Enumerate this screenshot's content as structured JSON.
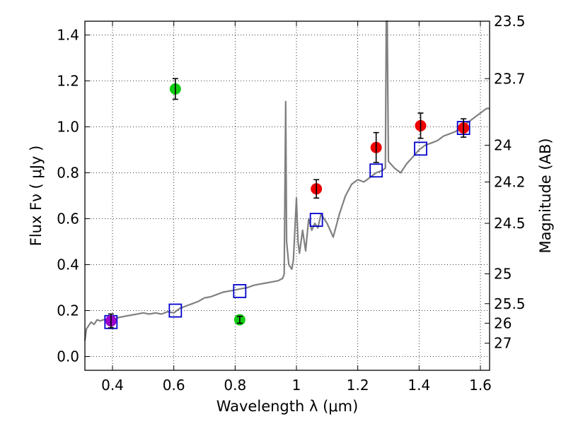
{
  "chart_data": {
    "type": "scatter",
    "title": "",
    "xlabel": "Wavelength  λ (μm)",
    "ylabel": "Flux  Fν  ( μJy )",
    "y2label": "Magnitude (AB)",
    "xlim": [
      0.31,
      1.63
    ],
    "ylim": [
      -0.06,
      1.46
    ],
    "grid": true,
    "x_ticks": [
      0.4,
      0.6,
      0.8,
      1.0,
      1.2,
      1.4,
      1.6
    ],
    "x_tick_labels": [
      "0.4",
      "0.6",
      "0.8",
      "1",
      "1.2",
      "1.4",
      "1.6"
    ],
    "y_ticks": [
      0.0,
      0.2,
      0.4,
      0.6,
      0.8,
      1.0,
      1.2,
      1.4
    ],
    "y_tick_labels": [
      "0.0",
      "0.2",
      "0.4",
      "0.6",
      "0.8",
      "1.0",
      "1.2",
      "1.4"
    ],
    "mag_ticks": [
      {
        "label": "23.5",
        "flux": 1.46
      },
      {
        "label": "23.7",
        "flux": 1.21
      },
      {
        "label": "24",
        "flux": 0.92
      },
      {
        "label": "24.2",
        "flux": 0.76
      },
      {
        "label": "24.5",
        "flux": 0.58
      },
      {
        "label": "25",
        "flux": 0.36
      },
      {
        "label": "25.5",
        "flux": 0.23
      },
      {
        "label": "26",
        "flux": 0.145
      },
      {
        "label": "27",
        "flux": 0.058
      }
    ],
    "colors": {
      "sed": "#808080",
      "model": "#0000cc",
      "red": "#ee0000",
      "green": "#11cc11",
      "purple": "#9900cc",
      "errorbar": "#000000"
    },
    "series": [
      {
        "name": "SED template",
        "kind": "line",
        "points": [
          [
            0.31,
            0.07
          ],
          [
            0.315,
            0.12
          ],
          [
            0.32,
            0.13
          ],
          [
            0.33,
            0.15
          ],
          [
            0.34,
            0.14
          ],
          [
            0.35,
            0.16
          ],
          [
            0.36,
            0.155
          ],
          [
            0.37,
            0.16
          ],
          [
            0.38,
            0.16
          ],
          [
            0.39,
            0.165
          ],
          [
            0.4,
            0.16
          ],
          [
            0.42,
            0.17
          ],
          [
            0.44,
            0.175
          ],
          [
            0.46,
            0.18
          ],
          [
            0.48,
            0.185
          ],
          [
            0.5,
            0.19
          ],
          [
            0.52,
            0.185
          ],
          [
            0.54,
            0.19
          ],
          [
            0.56,
            0.185
          ],
          [
            0.58,
            0.195
          ],
          [
            0.6,
            0.19
          ],
          [
            0.62,
            0.21
          ],
          [
            0.64,
            0.22
          ],
          [
            0.66,
            0.23
          ],
          [
            0.68,
            0.24
          ],
          [
            0.7,
            0.255
          ],
          [
            0.72,
            0.26
          ],
          [
            0.74,
            0.27
          ],
          [
            0.76,
            0.28
          ],
          [
            0.78,
            0.285
          ],
          [
            0.8,
            0.29
          ],
          [
            0.82,
            0.295
          ],
          [
            0.84,
            0.3
          ],
          [
            0.86,
            0.31
          ],
          [
            0.88,
            0.315
          ],
          [
            0.9,
            0.32
          ],
          [
            0.92,
            0.325
          ],
          [
            0.94,
            0.33
          ],
          [
            0.955,
            0.34
          ],
          [
            0.96,
            0.36
          ],
          [
            0.965,
            1.11
          ],
          [
            0.968,
            0.5
          ],
          [
            0.975,
            0.4
          ],
          [
            0.985,
            0.38
          ],
          [
            0.99,
            0.42
          ],
          [
            1.0,
            0.69
          ],
          [
            1.005,
            0.5
          ],
          [
            1.01,
            0.45
          ],
          [
            1.02,
            0.55
          ],
          [
            1.03,
            0.46
          ],
          [
            1.04,
            0.6
          ],
          [
            1.05,
            0.55
          ],
          [
            1.06,
            0.58
          ],
          [
            1.07,
            0.56
          ],
          [
            1.08,
            0.62
          ],
          [
            1.09,
            0.6
          ],
          [
            1.1,
            0.58
          ],
          [
            1.12,
            0.52
          ],
          [
            1.14,
            0.62
          ],
          [
            1.16,
            0.7
          ],
          [
            1.18,
            0.75
          ],
          [
            1.2,
            0.77
          ],
          [
            1.22,
            0.76
          ],
          [
            1.24,
            0.78
          ],
          [
            1.26,
            0.8
          ],
          [
            1.28,
            0.81
          ],
          [
            1.29,
            0.82
          ],
          [
            1.293,
            1.46
          ],
          [
            1.296,
            1.46
          ],
          [
            1.3,
            0.85
          ],
          [
            1.32,
            0.82
          ],
          [
            1.34,
            0.8
          ],
          [
            1.36,
            0.84
          ],
          [
            1.38,
            0.87
          ],
          [
            1.4,
            0.9
          ],
          [
            1.42,
            0.92
          ],
          [
            1.44,
            0.93
          ],
          [
            1.46,
            0.94
          ],
          [
            1.48,
            0.96
          ],
          [
            1.5,
            0.97
          ],
          [
            1.52,
            0.98
          ],
          [
            1.54,
            1.0
          ],
          [
            1.56,
            1.02
          ],
          [
            1.58,
            1.04
          ],
          [
            1.6,
            1.06
          ],
          [
            1.62,
            1.08
          ],
          [
            1.63,
            1.08
          ]
        ]
      },
      {
        "name": "Model photometry",
        "kind": "open-square",
        "points": [
          [
            0.395,
            0.15
          ],
          [
            0.605,
            0.2
          ],
          [
            0.815,
            0.285
          ],
          [
            1.065,
            0.595
          ],
          [
            1.26,
            0.81
          ],
          [
            1.405,
            0.905
          ],
          [
            1.545,
            0.995
          ]
        ]
      },
      {
        "name": "Red measurements",
        "kind": "filled-circle",
        "points": [
          [
            1.065,
            0.73,
            0.04
          ],
          [
            1.26,
            0.91,
            0.065
          ],
          [
            1.405,
            1.005,
            0.055
          ],
          [
            1.545,
            0.995,
            0.04
          ]
        ]
      },
      {
        "name": "Green measurements",
        "kind": "filled-circle",
        "points": [
          [
            0.605,
            1.165,
            0.045
          ],
          [
            0.815,
            0.16,
            0.015
          ]
        ]
      },
      {
        "name": "Purple measurement",
        "kind": "filled-circle",
        "points": [
          [
            0.395,
            0.155,
            0.03
          ]
        ]
      }
    ]
  }
}
